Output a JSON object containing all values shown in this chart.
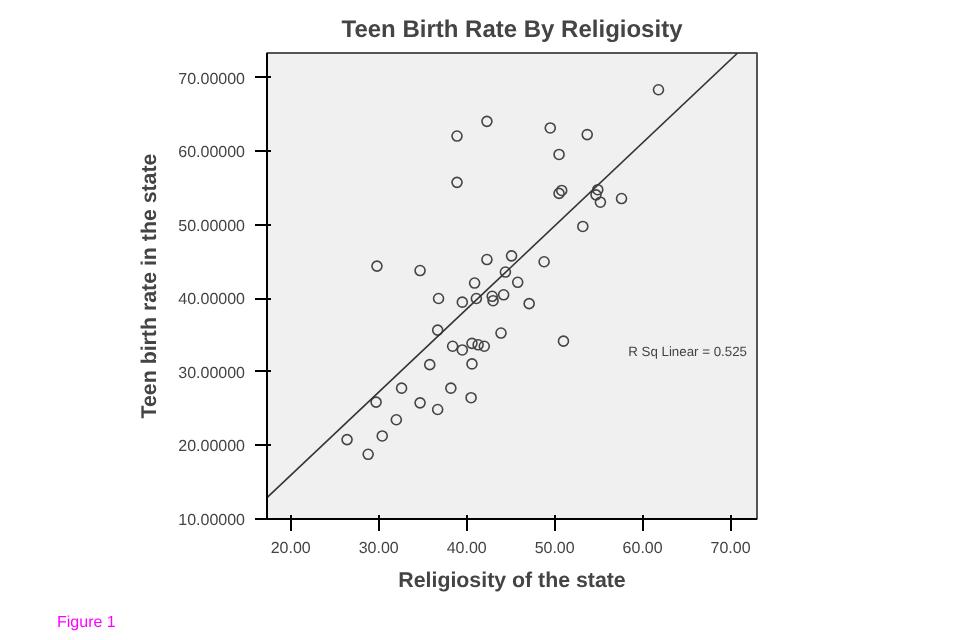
{
  "chart_data": {
    "type": "scatter",
    "title": "Teen Birth Rate By Religiosity",
    "xlabel": "Religiosity of the state",
    "ylabel": "Teen birth rate in the state",
    "xlim": [
      17.3,
      73
    ],
    "ylim": [
      10,
      73.4
    ],
    "xticks": [
      {
        "value": 20,
        "label": "20.00"
      },
      {
        "value": 30,
        "label": "30.00"
      },
      {
        "value": 40,
        "label": "40.00"
      },
      {
        "value": 50,
        "label": "50.00"
      },
      {
        "value": 60,
        "label": "60.00"
      },
      {
        "value": 70,
        "label": "70.00"
      }
    ],
    "yticks": [
      {
        "value": 10,
        "label": "10.00000"
      },
      {
        "value": 20,
        "label": "20.00000"
      },
      {
        "value": 30,
        "label": "30.00000"
      },
      {
        "value": 40,
        "label": "40.00000"
      },
      {
        "value": 50,
        "label": "50.00000"
      },
      {
        "value": 60,
        "label": "60.00000"
      },
      {
        "value": 70,
        "label": "70.00000"
      }
    ],
    "grid": false,
    "series": [
      {
        "color": "#444444",
        "marker": "circle",
        "x": [
          61.8,
          42.3,
          38.9,
          49.5,
          53.7,
          50.5,
          38.9,
          50.8,
          50.5,
          54.9,
          54.7,
          55.2,
          57.6,
          53.2,
          29.8,
          34.7,
          42.3,
          45.1,
          48.8,
          44.4,
          40.9,
          45.8,
          36.8,
          39.5,
          41.1,
          42.9,
          43.0,
          44.2,
          47.1,
          36.7,
          43.9,
          38.4,
          39.5,
          40.6,
          41.3,
          42.0,
          51.0,
          35.8,
          40.6,
          32.6,
          38.2,
          29.7,
          34.7,
          36.7,
          40.5,
          32.0,
          26.4,
          30.4,
          28.8
        ],
        "values": [
          68.4,
          64.1,
          62.1,
          63.2,
          62.3,
          59.6,
          55.8,
          54.7,
          54.3,
          54.8,
          54.1,
          53.1,
          53.6,
          49.8,
          44.4,
          43.8,
          45.3,
          45.8,
          45.0,
          43.6,
          42.1,
          42.2,
          40.0,
          39.5,
          40.0,
          40.3,
          39.7,
          40.5,
          39.3,
          35.7,
          35.3,
          33.5,
          33.0,
          33.9,
          33.7,
          33.5,
          34.2,
          31.0,
          31.1,
          27.8,
          27.8,
          25.9,
          25.8,
          24.9,
          26.5,
          23.5,
          20.8,
          21.3,
          18.8
        ]
      },
      {
        "type": "line",
        "color": "#333333",
        "marker": "none",
        "x": [
          17.3,
          70.8
        ],
        "values": [
          12.9,
          73.4
        ]
      }
    ],
    "annotations": [
      "R Sq Linear = 0.525",
      "Figure 1"
    ]
  }
}
